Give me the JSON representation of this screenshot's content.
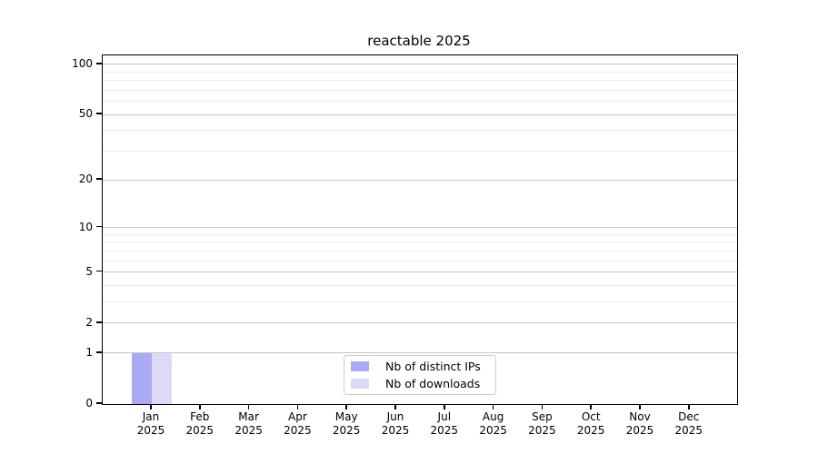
{
  "chart_data": {
    "type": "bar",
    "title": "reactable 2025",
    "x_axis": {
      "months": [
        "Jan",
        "Feb",
        "Mar",
        "Apr",
        "May",
        "Jun",
        "Jul",
        "Aug",
        "Sep",
        "Oct",
        "Nov",
        "Dec"
      ],
      "year": "2025"
    },
    "y_axis": {
      "scale": "log1p",
      "major_ticks": [
        0,
        1,
        2,
        5,
        10,
        20,
        50,
        100
      ],
      "minor_ticks": [
        3,
        4,
        6,
        7,
        8,
        9,
        30,
        40,
        60,
        70,
        80,
        90
      ],
      "range": [
        0,
        113
      ]
    },
    "series": [
      {
        "name": "Nb of distinct IPs",
        "color": "#a9a9f4",
        "values": [
          1,
          0,
          0,
          0,
          0,
          0,
          0,
          0,
          0,
          0,
          0,
          0
        ]
      },
      {
        "name": "Nb of downloads",
        "color": "#dbdbf8",
        "values": [
          1,
          0,
          0,
          0,
          0,
          0,
          0,
          0,
          0,
          0,
          0,
          0
        ]
      }
    ],
    "grid": {
      "major_color": "#c4c4c4",
      "minor_color": "#ececec"
    },
    "legend_position": "bottom-center"
  }
}
